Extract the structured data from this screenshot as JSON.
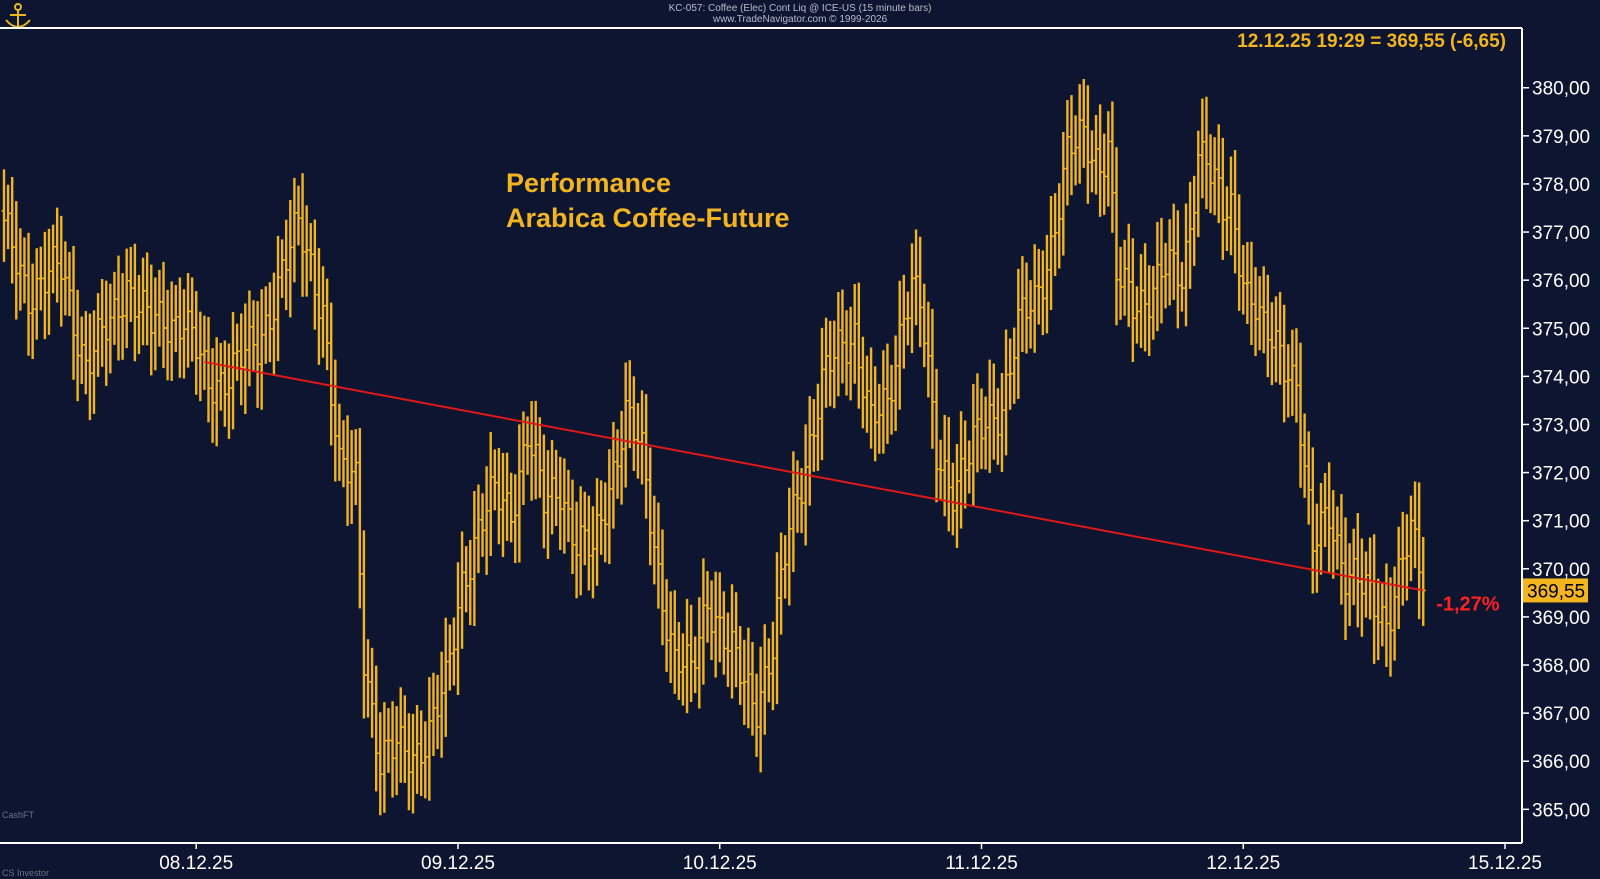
{
  "header": {
    "symbol_line": "KC-057: Coffee (Elec) Cont Liq @ ICE-US (15 minute bars)",
    "source_line": "www.TradeNavigator.com © 1999-2026"
  },
  "footer": {
    "left_mark": "CashFT",
    "bottom_left": "CS Investor"
  },
  "colors": {
    "background": "#0d1530",
    "bars": "#f2b51f",
    "trendline": "#e01818",
    "axis": "#ffffff",
    "title": "#f2b51f",
    "performance": "#ff2020"
  },
  "chart_data": {
    "type": "ohlc",
    "title": "Performance\nArabica Coffee-Future",
    "last_quote": "12.12.25 19:29 = 369,55 (-6,65)",
    "last_price": 369.55,
    "last_price_label": "369,55",
    "performance_label": "-1,27%",
    "ylim": [
      364.3,
      381.2
    ],
    "y_ticks": [
      365,
      366,
      367,
      368,
      369,
      370,
      371,
      372,
      373,
      374,
      375,
      376,
      377,
      378,
      379,
      380
    ],
    "y_tick_labels": [
      "365,00",
      "366,00",
      "367,00",
      "368,00",
      "369,00",
      "370,00",
      "371,00",
      "372,00",
      "373,00",
      "374,00",
      "375,00",
      "376,00",
      "377,00",
      "378,00",
      "379,00",
      "380,00"
    ],
    "x_ticks": [
      {
        "label": "08.12.25",
        "bar": 47
      },
      {
        "label": "09.12.25",
        "bar": 111
      },
      {
        "label": "10.12.25",
        "bar": 175
      },
      {
        "label": "11.12.25",
        "bar": 239
      },
      {
        "label": "12.12.25",
        "bar": 303
      },
      {
        "label": "15.12.25",
        "bar": 367
      }
    ],
    "trendline": {
      "from_bar": 49,
      "from_price": 374.3,
      "to_bar": 347,
      "to_price": 369.55
    },
    "anchors": [
      [
        0,
        377.0
      ],
      [
        6,
        375.8
      ],
      [
        14,
        376.2
      ],
      [
        20,
        374.3
      ],
      [
        26,
        375.0
      ],
      [
        30,
        376.0
      ],
      [
        36,
        375.0
      ],
      [
        44,
        375.3
      ],
      [
        50,
        373.7
      ],
      [
        56,
        374.3
      ],
      [
        62,
        374.5
      ],
      [
        68,
        376.3
      ],
      [
        72,
        377.0
      ],
      [
        78,
        375.5
      ],
      [
        82,
        372.0
      ],
      [
        86,
        371.8
      ],
      [
        88,
        368.3
      ],
      [
        92,
        366.0
      ],
      [
        96,
        366.2
      ],
      [
        100,
        366.2
      ],
      [
        104,
        366.6
      ],
      [
        108,
        367.5
      ],
      [
        112,
        369.8
      ],
      [
        116,
        370.8
      ],
      [
        120,
        371.5
      ],
      [
        124,
        371.3
      ],
      [
        128,
        372.8
      ],
      [
        132,
        371.3
      ],
      [
        136,
        371.8
      ],
      [
        140,
        370.5
      ],
      [
        144,
        370.3
      ],
      [
        148,
        371.8
      ],
      [
        152,
        373.2
      ],
      [
        156,
        372.3
      ],
      [
        160,
        370.0
      ],
      [
        164,
        368.0
      ],
      [
        168,
        367.8
      ],
      [
        172,
        369.5
      ],
      [
        176,
        368.5
      ],
      [
        180,
        367.8
      ],
      [
        184,
        367.3
      ],
      [
        188,
        368.3
      ],
      [
        192,
        370.8
      ],
      [
        196,
        372.3
      ],
      [
        200,
        373.8
      ],
      [
        204,
        374.5
      ],
      [
        208,
        375.0
      ],
      [
        212,
        373.0
      ],
      [
        216,
        373.3
      ],
      [
        220,
        375.5
      ],
      [
        222,
        376.0
      ],
      [
        224,
        375.5
      ],
      [
        228,
        372.3
      ],
      [
        232,
        371.8
      ],
      [
        236,
        372.3
      ],
      [
        240,
        373.0
      ],
      [
        244,
        373.5
      ],
      [
        248,
        375.0
      ],
      [
        252,
        375.5
      ],
      [
        256,
        376.8
      ],
      [
        260,
        378.5
      ],
      [
        264,
        379.0
      ],
      [
        268,
        378.5
      ],
      [
        270,
        378.8
      ],
      [
        272,
        376.0
      ],
      [
        276,
        375.5
      ],
      [
        280,
        375.8
      ],
      [
        284,
        376.2
      ],
      [
        288,
        376.0
      ],
      [
        290,
        377.2
      ],
      [
        292,
        378.8
      ],
      [
        294,
        378.5
      ],
      [
        298,
        377.3
      ],
      [
        300,
        377.5
      ],
      [
        304,
        375.8
      ],
      [
        306,
        375.5
      ],
      [
        308,
        374.8
      ],
      [
        312,
        374.5
      ],
      [
        316,
        374.0
      ],
      [
        318,
        372.0
      ],
      [
        320,
        370.3
      ],
      [
        324,
        371.2
      ],
      [
        328,
        370.0
      ],
      [
        330,
        369.8
      ],
      [
        334,
        369.3
      ],
      [
        338,
        369.0
      ],
      [
        342,
        370.2
      ],
      [
        344,
        370.6
      ],
      [
        346,
        370.0
      ],
      [
        347,
        369.55
      ]
    ]
  }
}
